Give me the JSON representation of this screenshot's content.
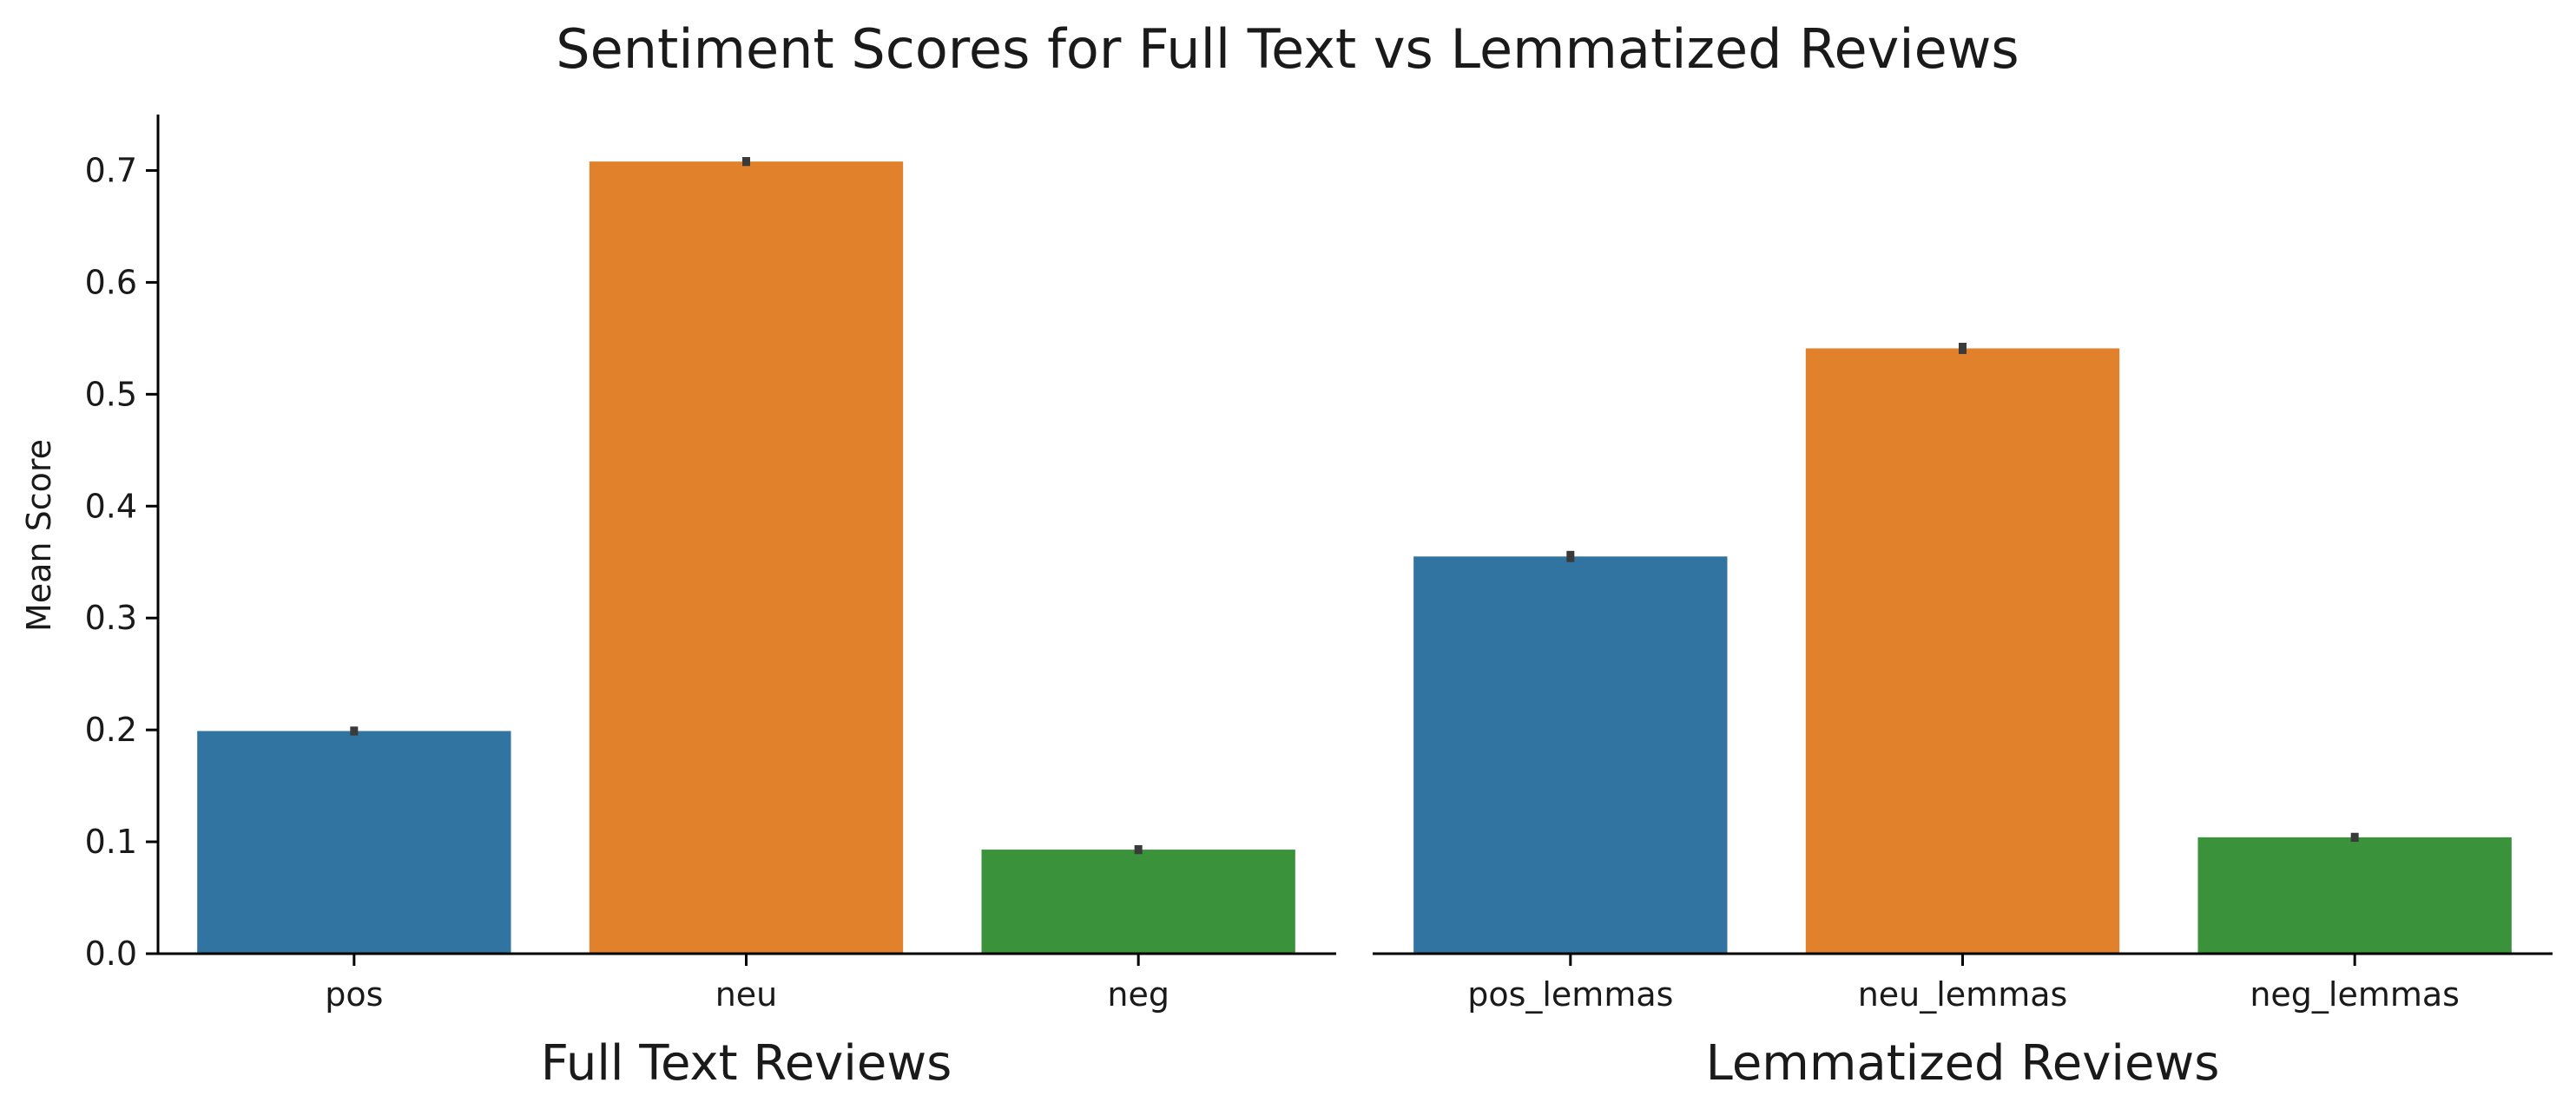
{
  "chart_data": {
    "type": "bar",
    "title": "Sentiment Scores for Full Text vs Lemmatized Reviews",
    "ylabel": "Mean Score",
    "ylim": [
      0,
      0.75
    ],
    "yticks": [
      "0.0",
      "0.1",
      "0.2",
      "0.3",
      "0.4",
      "0.5",
      "0.6",
      "0.7"
    ],
    "grid": false,
    "legend": "none",
    "shared_y": true,
    "colors": [
      "#3274a1",
      "#e1812c",
      "#3a923a"
    ],
    "error_bar_color": "#3a3a3a",
    "panels": [
      {
        "xlabel": "Full Text Reviews",
        "categories": [
          "pos",
          "neu",
          "neg"
        ],
        "values": [
          0.199,
          0.708,
          0.093
        ],
        "errors": [
          0.004,
          0.004,
          0.004
        ]
      },
      {
        "xlabel": "Lemmatized Reviews",
        "categories": [
          "pos_lemmas",
          "neu_lemmas",
          "neg_lemmas"
        ],
        "values": [
          0.355,
          0.541,
          0.104
        ],
        "errors": [
          0.005,
          0.005,
          0.004
        ]
      }
    ]
  }
}
